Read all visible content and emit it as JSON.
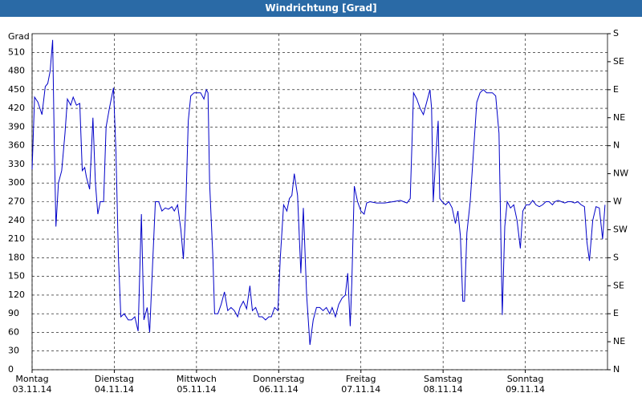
{
  "chart_data": {
    "type": "line",
    "title": "Windrichtung [Grad]",
    "ylabel": "Grad",
    "ylim": [
      0,
      540
    ],
    "yticks": [
      0,
      30,
      60,
      90,
      120,
      150,
      180,
      210,
      240,
      270,
      300,
      330,
      360,
      390,
      420,
      450,
      480,
      510
    ],
    "y2lim": [
      0,
      540
    ],
    "y2ticks": [
      {
        "value": 0,
        "label": "N"
      },
      {
        "value": 45,
        "label": "NE"
      },
      {
        "value": 90,
        "label": "E"
      },
      {
        "value": 135,
        "label": "SE"
      },
      {
        "value": 180,
        "label": "S"
      },
      {
        "value": 225,
        "label": "SW"
      },
      {
        "value": 270,
        "label": "W"
      },
      {
        "value": 315,
        "label": "NW"
      },
      {
        "value": 360,
        "label": "N"
      },
      {
        "value": 405,
        "label": "NE"
      },
      {
        "value": 450,
        "label": "E"
      },
      {
        "value": 495,
        "label": "SE"
      },
      {
        "value": 540,
        "label": "S"
      }
    ],
    "xlim": [
      0,
      7
    ],
    "xticks": [
      {
        "value": 0,
        "label": "Montag\n03.11.14"
      },
      {
        "value": 1,
        "label": "Dienstag\n04.11.14"
      },
      {
        "value": 2,
        "label": "Mittwoch\n05.11.14"
      },
      {
        "value": 3,
        "label": "Donnerstag\n06.11.14"
      },
      {
        "value": 4,
        "label": "Freitag\n07.11.14"
      },
      {
        "value": 5,
        "label": "Samstag\n08.11.14"
      },
      {
        "value": 6,
        "label": "Sonntag\n09.11.14"
      }
    ],
    "grid": true,
    "series": [
      {
        "color": "#0000c8",
        "x": [
          0,
          0.03,
          0.07,
          0.12,
          0.16,
          0.19,
          0.22,
          0.25,
          0.27,
          0.29,
          0.32,
          0.36,
          0.4,
          0.43,
          0.47,
          0.5,
          0.54,
          0.58,
          0.61,
          0.64,
          0.66,
          0.7,
          0.74,
          0.77,
          0.8,
          0.83,
          0.87,
          0.9,
          0.94,
          0.99,
          1.02,
          1.05,
          1.08,
          1.12,
          1.17,
          1.21,
          1.25,
          1.29,
          1.33,
          1.36,
          1.4,
          1.43,
          1.46,
          1.5,
          1.54,
          1.58,
          1.62,
          1.66,
          1.7,
          1.73,
          1.77,
          1.81,
          1.84,
          1.87,
          1.9,
          1.93,
          1.97,
          2.01,
          2.05,
          2.09,
          2.12,
          2.14,
          2.16,
          2.2,
          2.22,
          2.26,
          2.3,
          2.34,
          2.38,
          2.42,
          2.46,
          2.5,
          2.53,
          2.57,
          2.61,
          2.65,
          2.68,
          2.72,
          2.76,
          2.8,
          2.84,
          2.88,
          2.91,
          2.95,
          2.99,
          3.02,
          3.06,
          3.1,
          3.13,
          3.16,
          3.19,
          3.23,
          3.27,
          3.3,
          3.34,
          3.38,
          3.42,
          3.46,
          3.5,
          3.54,
          3.58,
          3.62,
          3.65,
          3.69,
          3.73,
          3.77,
          3.81,
          3.84,
          3.87,
          3.89,
          3.92,
          3.96,
          4.0,
          4.04,
          4.07,
          4.11,
          4.19,
          4.29,
          4.39,
          4.48,
          4.56,
          4.6,
          4.64,
          4.68,
          4.72,
          4.76,
          4.8,
          4.84,
          4.86,
          4.88,
          4.91,
          4.94,
          4.96,
          4.99,
          5.03,
          5.07,
          5.11,
          5.15,
          5.18,
          5.21,
          5.24,
          5.26,
          5.29,
          5.33,
          5.37,
          5.41,
          5.45,
          5.49,
          5.53,
          5.57,
          5.6,
          5.64,
          5.68,
          5.72,
          5.75,
          5.78,
          5.82,
          5.86,
          5.9,
          5.94,
          5.97,
          6.01,
          6.05,
          6.09,
          6.13,
          6.17,
          6.21,
          6.25,
          6.29,
          6.33,
          6.36,
          6.4,
          6.44,
          6.48,
          6.52,
          6.56,
          6.6,
          6.64,
          6.68,
          6.72,
          6.75,
          6.78,
          6.82,
          6.86,
          6.9,
          6.94,
          6.97
        ],
        "values": [
          322,
          438,
          430,
          410,
          455,
          460,
          480,
          530,
          360,
          230,
          300,
          320,
          380,
          435,
          425,
          438,
          425,
          428,
          320,
          325,
          310,
          290,
          405,
          300,
          250,
          270,
          270,
          390,
          420,
          453,
          350,
          180,
          85,
          90,
          80,
          80,
          85,
          62,
          250,
          80,
          100,
          60,
          150,
          270,
          270,
          255,
          260,
          258,
          262,
          255,
          265,
          225,
          178,
          260,
          400,
          440,
          445,
          445,
          445,
          435,
          450,
          445,
          300,
          180,
          90,
          90,
          105,
          125,
          95,
          100,
          95,
          85,
          100,
          110,
          98,
          135,
          95,
          100,
          85,
          85,
          80,
          85,
          85,
          100,
          95,
          180,
          265,
          255,
          275,
          280,
          315,
          280,
          155,
          260,
          120,
          40,
          80,
          100,
          100,
          95,
          100,
          90,
          100,
          85,
          105,
          115,
          120,
          155,
          70,
          140,
          295,
          270,
          255,
          250,
          268,
          270,
          268,
          268,
          270,
          272,
          268,
          275,
          445,
          435,
          420,
          410,
          430,
          450,
          420,
          270,
          340,
          400,
          275,
          270,
          265,
          270,
          260,
          235,
          255,
          215,
          110,
          110,
          220,
          270,
          350,
          430,
          445,
          450,
          445,
          445,
          445,
          440,
          380,
          88,
          230,
          270,
          260,
          265,
          240,
          195,
          255,
          265,
          265,
          272,
          265,
          262,
          265,
          270,
          270,
          265,
          270,
          272,
          270,
          268,
          270,
          270,
          268,
          270,
          265,
          262,
          205,
          175,
          240,
          262,
          260,
          210,
          265
        ]
      }
    ]
  }
}
